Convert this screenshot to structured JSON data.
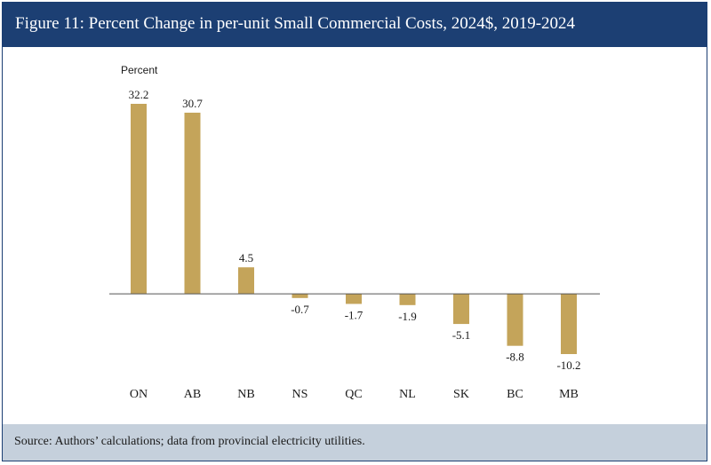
{
  "header": {
    "title": "Figure 11: Percent Change in per-unit Small Commercial Costs, 2024$, 2019-2024"
  },
  "footer": {
    "source": "Source: Authors’ calculations; data from provincial electricity utilities."
  },
  "colors": {
    "header_bg": "#1c3f73",
    "footer_bg": "#c5d0dc",
    "bar": "#c4a45a"
  },
  "chart_data": {
    "type": "bar",
    "title": "Figure 11: Percent Change in per-unit Small Commercial Costs, 2024$, 2019-2024",
    "ylabel": "Percent",
    "xlabel": "",
    "categories": [
      "ON",
      "AB",
      "NB",
      "NS",
      "QC",
      "NL",
      "SK",
      "BC",
      "MB"
    ],
    "values": [
      32.2,
      30.7,
      4.5,
      -0.7,
      -1.7,
      -1.9,
      -5.1,
      -8.8,
      -10.2
    ],
    "value_labels": [
      "32.2",
      "30.7",
      "4.5",
      "-0.7",
      "-1.7",
      "-1.9",
      "-5.1",
      "-8.8",
      "-10.2"
    ],
    "ylim": [
      -10.2,
      32.2
    ],
    "grid": false,
    "legend": "none"
  }
}
